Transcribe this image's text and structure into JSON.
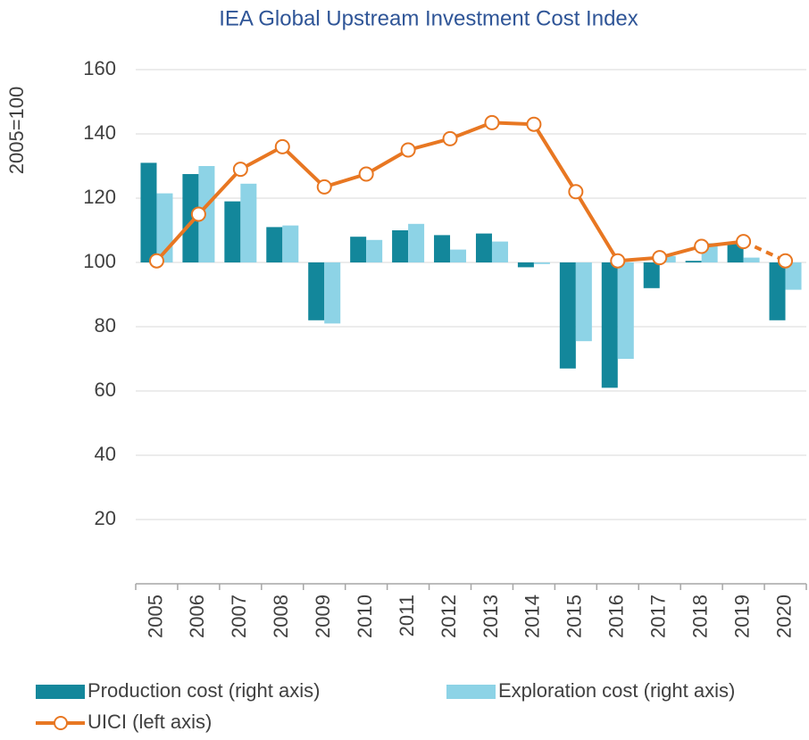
{
  "chart_data": {
    "type": "bar-line",
    "title": "IEA Global Upstream Investment Cost Index",
    "y_label": "2005=100",
    "categories": [
      "2005",
      "2006",
      "2007",
      "2008",
      "2009",
      "2010",
      "2011",
      "2012",
      "2013",
      "2014",
      "2015",
      "2016",
      "2017",
      "2018",
      "2019",
      "2020"
    ],
    "series": [
      {
        "name": "Production cost (right axis)",
        "kind": "bar",
        "color": "#13879b",
        "values": [
          131,
          127.5,
          119,
          111,
          82,
          108,
          110,
          108.5,
          109,
          98.5,
          67,
          61,
          92,
          100.5,
          106,
          82
        ]
      },
      {
        "name": "Exploration cost (right axis)",
        "kind": "bar",
        "color": "#8dd3e6",
        "values": [
          121.5,
          130,
          124.5,
          111.5,
          81,
          107,
          112,
          104,
          106.5,
          99.5,
          75.5,
          70,
          102,
          106,
          101.5,
          91.5
        ]
      },
      {
        "name": "UICI (left axis)",
        "kind": "line",
        "color": "#e87722",
        "dash_from_index": 14,
        "values": [
          100.5,
          115,
          129,
          136,
          123.5,
          127.5,
          135,
          138.5,
          143.5,
          143,
          122,
          100.5,
          101.5,
          105,
          106.5,
          100.5
        ]
      }
    ],
    "bar_base": 100,
    "ylim": [
      0,
      160
    ],
    "yticks": [
      20,
      40,
      60,
      80,
      100,
      120,
      140,
      160
    ],
    "grid": true
  }
}
